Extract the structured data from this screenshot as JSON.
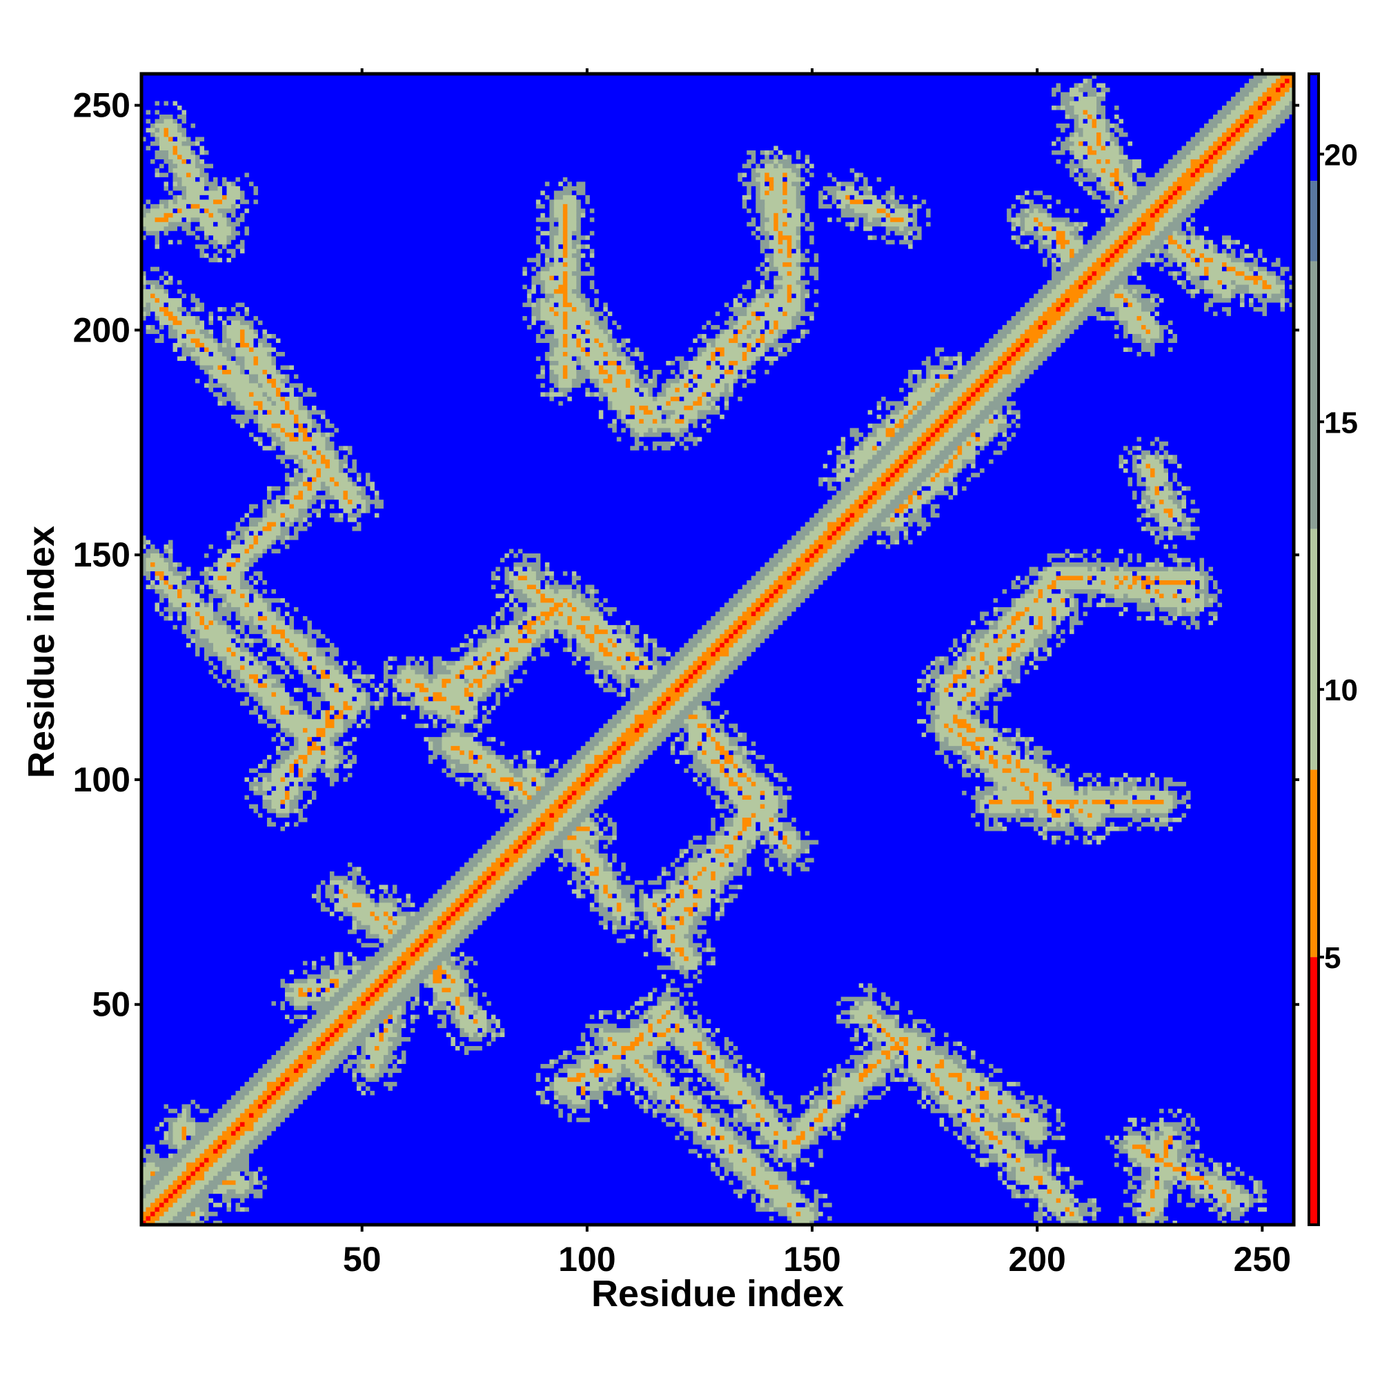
{
  "chart_data": {
    "type": "heatmap",
    "title": "",
    "xlabel": "Residue index",
    "ylabel": "Residue index",
    "xlim": [
      1,
      257
    ],
    "ylim": [
      1,
      257
    ],
    "x_ticks": [
      50,
      100,
      150,
      200,
      250
    ],
    "y_ticks": [
      50,
      100,
      150,
      200,
      250
    ],
    "x_tick_labels": [
      "50",
      "100",
      "150",
      "200",
      "250"
    ],
    "y_tick_labels": [
      "50",
      "100",
      "150",
      "200",
      "250"
    ],
    "n_residues": 257,
    "value_range": [
      0,
      21.5
    ],
    "background_value": 21,
    "colorbar": {
      "ticks": [
        5,
        10,
        15,
        20
      ],
      "tick_labels": [
        "5",
        "10",
        "15",
        "20"
      ],
      "range": [
        0,
        21.5
      ],
      "colors": [
        {
          "max": 5,
          "color": "#ff0000"
        },
        {
          "max": 8.5,
          "color": "#ff8c00"
        },
        {
          "max": 13,
          "color": "#b4c8a0"
        },
        {
          "max": 18,
          "color": "#8ca096"
        },
        {
          "max": 19.5,
          "color": "#5a78a0"
        },
        {
          "max": 21.5,
          "color": "#0000ff"
        }
      ]
    },
    "segments": [
      {
        "from": [
          3,
          208
        ],
        "to": [
          48,
          162
        ]
      },
      {
        "from": [
          3,
          148
        ],
        "to": [
          42,
          105
        ]
      },
      {
        "from": [
          3,
          225
        ],
        "to": [
          20,
          230
        ]
      },
      {
        "from": [
          3,
          12
        ],
        "to": [
          22,
          10
        ]
      },
      {
        "from": [
          30,
          98
        ],
        "to": [
          48,
          118
        ]
      },
      {
        "from": [
          36,
          52
        ],
        "to": [
          62,
          60
        ]
      },
      {
        "from": [
          55,
          70
        ],
        "to": [
          75,
          45
        ]
      },
      {
        "from": [
          64,
          118
        ],
        "to": [
          95,
          140
        ]
      },
      {
        "from": [
          95,
          140
        ],
        "to": [
          118,
          120
        ]
      },
      {
        "from": [
          70,
          108
        ],
        "to": [
          100,
          88
        ]
      },
      {
        "from": [
          92,
          205
        ],
        "to": [
          112,
          180
        ]
      },
      {
        "from": [
          118,
          184
        ],
        "to": [
          140,
          206
        ]
      },
      {
        "from": [
          125,
          108
        ],
        "to": [
          145,
          85
        ]
      },
      {
        "from": [
          118,
          72
        ],
        "to": [
          140,
          95
        ]
      },
      {
        "from": [
          95,
          32
        ],
        "to": [
          120,
          45
        ]
      },
      {
        "from": [
          120,
          45
        ],
        "to": [
          145,
          18
        ]
      },
      {
        "from": [
          145,
          18
        ],
        "to": [
          170,
          42
        ]
      },
      {
        "from": [
          170,
          42
        ],
        "to": [
          200,
          22
        ]
      },
      {
        "from": [
          168,
          158
        ],
        "to": [
          190,
          180
        ]
      },
      {
        "from": [
          180,
          115
        ],
        "to": [
          212,
          92
        ]
      },
      {
        "from": [
          180,
          120
        ],
        "to": [
          205,
          145
        ]
      },
      {
        "from": [
          205,
          145
        ],
        "to": [
          235,
          144
        ]
      },
      {
        "from": [
          205,
          222
        ],
        "to": [
          225,
          200
        ]
      },
      {
        "from": [
          210,
          242
        ],
        "to": [
          230,
          220
        ]
      },
      {
        "from": [
          230,
          220
        ],
        "to": [
          252,
          210
        ]
      },
      {
        "from": [
          222,
          18
        ],
        "to": [
          245,
          6
        ]
      },
      {
        "from": [
          60,
          122
        ],
        "to": [
          72,
          115
        ]
      },
      {
        "from": [
          140,
          235
        ],
        "to": [
          145,
          212
        ]
      },
      {
        "from": [
          158,
          230
        ],
        "to": [
          170,
          225
        ]
      },
      {
        "from": [
          190,
          95
        ],
        "to": [
          228,
          95
        ]
      }
    ]
  }
}
